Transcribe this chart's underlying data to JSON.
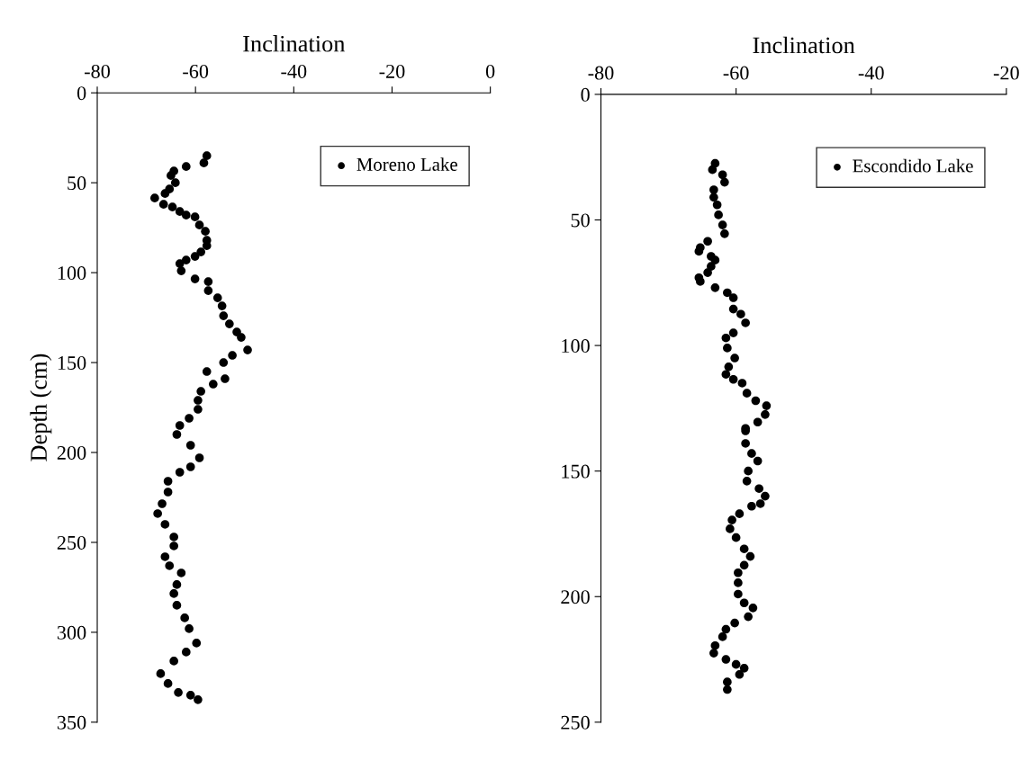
{
  "chart_data": [
    {
      "type": "scatter",
      "xlabel": "Inclination",
      "ylabel": "Depth (cm)",
      "xlim": [
        -80,
        0
      ],
      "xticks": [
        -80,
        -60,
        -40,
        -20,
        0
      ],
      "ylim": [
        350,
        0
      ],
      "yticks": [
        0,
        50,
        100,
        150,
        200,
        250,
        300,
        350
      ],
      "legend": "top right",
      "marker": "circle",
      "grid": false,
      "series": [
        {
          "name": "Moreno Lake",
          "color": "#000000",
          "x": [
            -57.7,
            -58.3,
            -61.9,
            -64.4,
            -65.0,
            -64.1,
            -65.3,
            -66.2,
            -68.3,
            -66.5,
            -64.7,
            -63.2,
            -61.9,
            -60.1,
            -59.2,
            -58.0,
            -57.7,
            -57.7,
            -58.9,
            -60.1,
            -61.9,
            -63.2,
            -62.9,
            -60.1,
            -57.4,
            -57.4,
            -55.5,
            -54.6,
            -54.3,
            -53.1,
            -51.6,
            -50.7,
            -49.4,
            -52.5,
            -54.3,
            -57.7,
            -54.0,
            -56.4,
            -58.9,
            -59.5,
            -59.5,
            -61.3,
            -63.2,
            -63.8,
            -61.0,
            -59.2,
            -61.0,
            -63.2,
            -65.6,
            -65.6,
            -66.8,
            -67.7,
            -66.2,
            -64.4,
            -64.4,
            -66.2,
            -65.3,
            -62.9,
            -63.8,
            -64.4,
            -63.8,
            -62.2,
            -61.3,
            -59.8,
            -61.9,
            -64.4,
            -67.1,
            -65.6,
            -63.5,
            -61.0,
            -59.5
          ],
          "values": [
            35,
            39,
            41,
            43.5,
            46,
            50,
            53.5,
            56,
            58.5,
            62,
            63.5,
            66,
            68,
            69,
            73.5,
            77,
            82,
            85,
            88.5,
            91,
            93,
            95,
            99,
            103.5,
            105,
            110,
            114,
            118.5,
            124,
            128.5,
            133,
            136,
            143,
            146,
            150,
            155,
            159,
            162,
            166,
            171,
            176,
            181,
            185,
            190,
            196,
            203,
            208,
            211,
            216,
            222,
            228.5,
            234,
            240,
            247,
            252,
            258,
            263,
            267,
            273.5,
            278.5,
            285,
            292,
            298,
            306,
            311,
            316,
            323,
            328.5,
            333.5,
            335,
            337.5
          ]
        }
      ]
    },
    {
      "type": "scatter",
      "xlabel": "Inclination",
      "xlim": [
        -80,
        -20
      ],
      "xticks": [
        -80,
        -60,
        -40,
        -20
      ],
      "ylim": [
        250,
        0
      ],
      "yticks": [
        0,
        50,
        100,
        150,
        200,
        250
      ],
      "legend": "top right",
      "marker": "circle",
      "grid": false,
      "series": [
        {
          "name": "Escondido Lake",
          "color": "#000000",
          "x": [
            -63.1,
            -63.5,
            -62.0,
            -61.7,
            -63.3,
            -63.3,
            -62.8,
            -62.6,
            -62.0,
            -61.7,
            -64.2,
            -65.3,
            -65.5,
            -63.7,
            -63.1,
            -63.7,
            -64.2,
            -65.5,
            -65.3,
            -63.1,
            -61.3,
            -60.4,
            -60.4,
            -59.3,
            -58.6,
            -60.4,
            -61.5,
            -61.3,
            -60.2,
            -61.1,
            -61.5,
            -60.4,
            -59.1,
            -58.4,
            -57.1,
            -55.5,
            -55.7,
            -56.8,
            -58.6,
            -58.6,
            -58.6,
            -57.7,
            -56.8,
            -58.2,
            -58.4,
            -56.6,
            -55.7,
            -56.4,
            -57.7,
            -59.5,
            -60.6,
            -60.9,
            -60.0,
            -58.8,
            -57.9,
            -58.8,
            -59.7,
            -59.7,
            -59.7,
            -58.8,
            -57.5,
            -58.2,
            -60.2,
            -61.5,
            -62.0,
            -63.1,
            -63.3,
            -61.5,
            -60.0,
            -58.8,
            -59.5,
            -61.3,
            -61.3
          ],
          "values": [
            27.5,
            30,
            32,
            35,
            38,
            41,
            44,
            48,
            52,
            55.5,
            58.5,
            61,
            62.5,
            64.5,
            66,
            68.5,
            71,
            73,
            74.5,
            77,
            79,
            81,
            85.5,
            87.5,
            91,
            95,
            97,
            101,
            105,
            108.5,
            111.5,
            113.5,
            115,
            119,
            122,
            124,
            127.5,
            130.5,
            133,
            134,
            139,
            143,
            146,
            150,
            154,
            157,
            160,
            163,
            164,
            167,
            169.5,
            173,
            176.5,
            181,
            184,
            187.5,
            190.5,
            194.5,
            199,
            202.5,
            204.5,
            208,
            210.5,
            213,
            216,
            219.5,
            222.5,
            225,
            227,
            228.5,
            231,
            234,
            237
          ]
        }
      ]
    }
  ]
}
